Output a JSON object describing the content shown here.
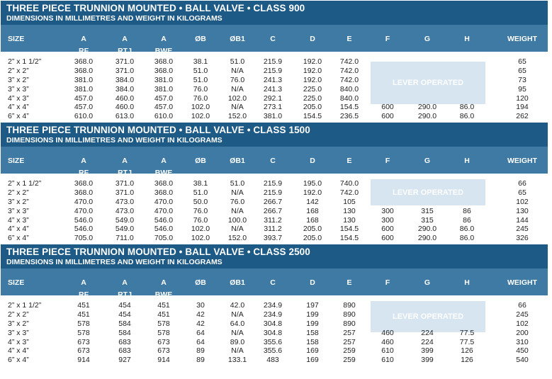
{
  "sections": [
    {
      "title": "THREE PIECE TRUNNION MOUNTED • BALL VALVE • CLASS 900",
      "subtitle": "DIMENSIONS IN MILLIMETRES AND WEIGHT IN KILOGRAMS",
      "lever_label": "LEVER OPERATED",
      "rows": [
        [
          "2” x 1 1/2”",
          "368.0",
          "371.0",
          "368.0",
          "38.1",
          "51.0",
          "215.9",
          "192.0",
          "742.0",
          "",
          "",
          "",
          "65"
        ],
        [
          "2” x 2”",
          "368.0",
          "371.0",
          "368.0",
          "51.0",
          "N/A",
          "215.9",
          "192.0",
          "742.0",
          "",
          "",
          "",
          "65"
        ],
        [
          "3” x 2”",
          "381.0",
          "384.0",
          "381.0",
          "51.0",
          "76.0",
          "241.3",
          "192.0",
          "742.0",
          "",
          "",
          "",
          "73"
        ],
        [
          "3” x 3”",
          "381.0",
          "384.0",
          "381.0",
          "76.0",
          "N/A",
          "241.3",
          "225.0",
          "840.0",
          "",
          "",
          "",
          "95"
        ],
        [
          "4” x 3”",
          "457.0",
          "460.0",
          "457.0",
          "76.0",
          "102.0",
          "292.1",
          "225.0",
          "840.0",
          "",
          "",
          "",
          "120"
        ],
        [
          "4” x 4”",
          "457.0",
          "460.0",
          "457.0",
          "102.0",
          "N/A",
          "273.1",
          "205.0",
          "154.5",
          "600",
          "290.0",
          "86.0",
          "194"
        ],
        [
          "6” x 4”",
          "610.0",
          "613.0",
          "610.0",
          "102.0",
          "152.0",
          "381.0",
          "154.5",
          "236.5",
          "600",
          "290.0",
          "86.0",
          "262"
        ]
      ]
    },
    {
      "title": "THREE PIECE TRUNNION MOUNTED • BALL VALVE • CLASS 1500",
      "subtitle": "DIMENSIONS IN MILLIMETRES AND WEIGHT IN KILOGRAMS",
      "lever_label": "LEVER OPERATED",
      "rows": [
        [
          "2” x 1 1/2”",
          "368.0",
          "371.0",
          "368.0",
          "38.1",
          "51.0",
          "215.9",
          "195.0",
          "740.0",
          "",
          "",
          "",
          "66"
        ],
        [
          "2” x 2”",
          "368.0",
          "371.0",
          "368.0",
          "51.0",
          "N/A",
          "215.9",
          "192.0",
          "742.0",
          "",
          "",
          "",
          "65"
        ],
        [
          "3” x 2”",
          "470.0",
          "473.0",
          "470.0",
          "50.0",
          "76.0",
          "266.7",
          "142",
          "105",
          "",
          "",
          "",
          "102"
        ],
        [
          "3” x 3”",
          "470.0",
          "473.0",
          "470.0",
          "76.0",
          "N/A",
          "266.7",
          "168",
          "130",
          "300",
          "315",
          "86",
          "130"
        ],
        [
          "4” x 3”",
          "546.0",
          "549.0",
          "546.0",
          "76.0",
          "100.0",
          "311.2",
          "168",
          "130",
          "300",
          "315",
          "86",
          "144"
        ],
        [
          "4” x 4”",
          "546.0",
          "549.0",
          "546.0",
          "102.0",
          "N/A",
          "311.2",
          "205.0",
          "154.5",
          "600",
          "290.0",
          "86.0",
          "245"
        ],
        [
          "6” x 4”",
          "705.0",
          "711.0",
          "705.0",
          "102.0",
          "152.0",
          "393.7",
          "205.0",
          "154.5",
          "600",
          "290.0",
          "86.0",
          "326"
        ]
      ]
    },
    {
      "title": "THREE PIECE TRUNNION MOUNTED • BALL VALVE • CLASS 2500",
      "subtitle": "DIMENSIONS IN MILLIMETRES AND WEIGHT IN KILOGRAMS",
      "lever_label": "LEVER OPERATED",
      "rows": [
        [
          "2” x 1 1/2”",
          "451",
          "454",
          "451",
          "30",
          "42.0",
          "234.9",
          "197",
          "890",
          "",
          "",
          "",
          "66"
        ],
        [
          "2” x 2”",
          "451",
          "454",
          "451",
          "42",
          "N/A",
          "234.9",
          "199",
          "890",
          "",
          "",
          "",
          "245"
        ],
        [
          "3” x 2”",
          "578",
          "584",
          "578",
          "42",
          "64.0",
          "304.8",
          "199",
          "890",
          "",
          "",
          "",
          "102"
        ],
        [
          "3” x 3”",
          "578",
          "584",
          "578",
          "64",
          "N/A",
          "304.8",
          "158",
          "257",
          "460",
          "224",
          "77.5",
          "200"
        ],
        [
          "4” x 3”",
          "673",
          "683",
          "673",
          "64",
          "89.0",
          "355.6",
          "158",
          "257",
          "460",
          "224",
          "77.5",
          "310"
        ],
        [
          "4” x 4”",
          "673",
          "683",
          "673",
          "89",
          "N/A",
          "355.6",
          "169",
          "259",
          "610",
          "399",
          "126",
          "450"
        ],
        [
          "6” x 4”",
          "914",
          "927",
          "914",
          "89",
          "133.1",
          "483",
          "169",
          "259",
          "610",
          "399",
          "126",
          "540"
        ]
      ]
    }
  ],
  "headers": {
    "size": "SIZE",
    "a": "A",
    "rf": "RF",
    "rtj": "RTJ",
    "bwe": "BWE",
    "ob": "ØB",
    "ob1": "ØB1",
    "c": "C",
    "d": "D",
    "e": "E",
    "f": "F",
    "g": "G",
    "h": "H",
    "weight": "WEIGHT"
  },
  "colors": {
    "title_bar": "#1d5a86",
    "header_bar": "#3f7aa5",
    "lever_box": "#d6e5f0"
  }
}
